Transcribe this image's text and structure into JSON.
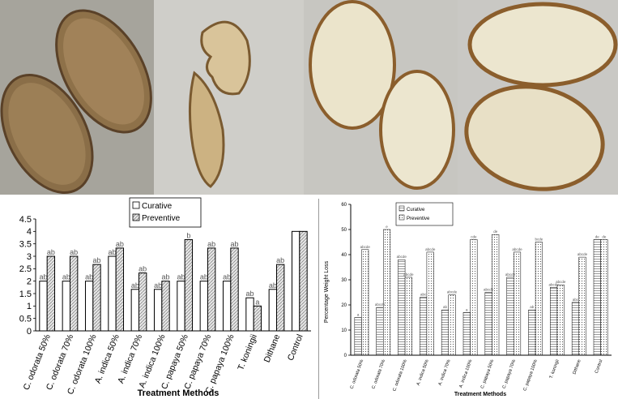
{
  "photos": {
    "panel1": {
      "name": "yam-slices-dark-brown"
    },
    "panel2": {
      "name": "yam-slices-curled-peeling"
    },
    "panel3": {
      "name": "yam-slices-cream-white"
    },
    "panel4": {
      "name": "yam-slices-large-cream"
    }
  },
  "colors": {
    "bar_fill_curative": "#ffffff",
    "bar_stroke": "#000000",
    "bar_fill_preventive": "#d9d9d9",
    "axis": "#000000"
  },
  "chart_data": [
    {
      "type": "bar",
      "id": "left-chart",
      "title": "",
      "xlabel": "Treatment Methods",
      "ylabel": "",
      "ylim": [
        0,
        4.5
      ],
      "yticks": [
        "0",
        "0.5",
        "1",
        "1.5",
        "2",
        "2.5",
        "3",
        "3.5",
        "4",
        "4.5"
      ],
      "categories": [
        "C. odorata 50%",
        "C. odorata 70%",
        "C. odorata 100%",
        "A. indica 50%",
        "A. indica 70%",
        "A. indica 100%",
        "C. papaya 50%",
        "C. papaya 70%",
        "C. papaya 100%",
        "T. koningii",
        "Dithane",
        "Control"
      ],
      "series": [
        {
          "name": "Curative",
          "values": [
            2,
            2,
            2,
            3,
            1.67,
            1.67,
            2,
            2,
            2,
            1.33,
            1.67,
            4
          ],
          "labels": [
            "ab",
            "ab",
            "ab",
            "ab",
            "ab",
            "ab",
            "ab",
            "ab",
            "ab",
            "ab",
            "ab",
            ""
          ]
        },
        {
          "name": "Preventive",
          "values": [
            3,
            3,
            2.67,
            3.33,
            2.33,
            2,
            3.67,
            3.33,
            3.33,
            1,
            2.67,
            4
          ],
          "labels": [
            "ab",
            "ab",
            "ab",
            "ab",
            "ab",
            "ab",
            "b",
            "ab",
            "ab",
            "a",
            "ab",
            ""
          ]
        }
      ],
      "legend": [
        "Curative",
        "Preventive"
      ],
      "legend_position": "top-center"
    },
    {
      "type": "bar",
      "id": "right-chart",
      "title": "",
      "xlabel": "Treatment Methods",
      "ylabel": "Percentage Weight Loss",
      "ylim": [
        0,
        60
      ],
      "yticks": [
        "0",
        "10",
        "20",
        "30",
        "40",
        "50",
        "60"
      ],
      "categories": [
        "C. odorata 50%",
        "C. odorata 70%",
        "C. odorata 100%",
        "A. indica 50%",
        "A. indica 70%",
        "A. indica 100%",
        "C. papaya 50%",
        "C. papaya 70%",
        "C. papaya 100%",
        "T. koningii",
        "Dithane",
        "Control"
      ],
      "series": [
        {
          "name": "Curative",
          "values": [
            15,
            19,
            38,
            23,
            18,
            17,
            25,
            31,
            18,
            27,
            21,
            46
          ],
          "labels": [
            "a",
            "abcde",
            "abcde",
            "abc",
            "ab",
            "a",
            "abcde",
            "abcde",
            "ab",
            "abcde",
            "abc",
            "de"
          ]
        },
        {
          "name": "Preventive",
          "values": [
            42,
            50,
            31,
            41,
            24,
            46,
            48,
            41,
            45,
            28,
            39,
            46
          ],
          "labels": [
            "abcde",
            "e",
            "abcde",
            "abcde",
            "abcde",
            "cde",
            "de",
            "abcde",
            "bcde",
            "abcde",
            "abcde",
            "de"
          ]
        }
      ],
      "legend": [
        "Curative",
        "Preventive"
      ],
      "legend_position": "top-left"
    }
  ]
}
